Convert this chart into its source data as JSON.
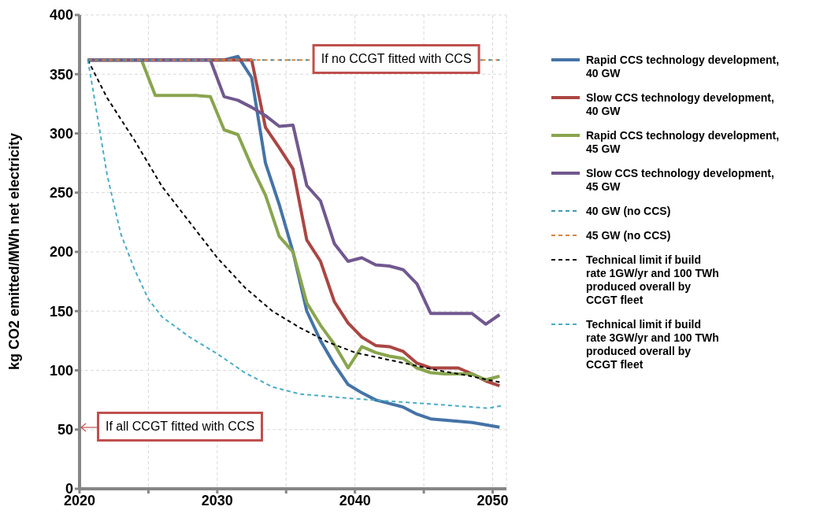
{
  "chart_data": {
    "type": "line",
    "ylabel": "kg CO2 emitted/MWh net electricity",
    "xlim": [
      2020,
      2051
    ],
    "xticks": [
      2020,
      {
        "value": 2025,
        "label": null
      },
      2030,
      {
        "value": 2035,
        "label": null
      },
      2040,
      {
        "value": 2045,
        "label": null
      },
      2050
    ],
    "ylim": [
      0,
      400
    ],
    "yticks": [
      0,
      50,
      100,
      150,
      200,
      250,
      300,
      350,
      400
    ],
    "grid": true,
    "legend": "right",
    "marker": "none",
    "annotations": [
      {
        "text": "If no CCGT fitted with CCS",
        "x": 2043,
        "y": 362
      },
      "If all CCGT fitted with CCS"
    ],
    "series": [
      {
        "name": "Rapid CCS technology development, 40 GW",
        "color": "#4573a7",
        "line_style": "solid",
        "x": [
          2020.6,
          2030.5,
          2031.5,
          2032.5,
          2033.5,
          2034.5,
          2035.5,
          2036.5,
          2037.5,
          2038.5,
          2039.5,
          2040.5,
          2041.5,
          2042.5,
          2043.5,
          2044.5,
          2045.5,
          2046.5,
          2047.5,
          2048.5,
          2049.5,
          2050.5
        ],
        "values": [
          362,
          362,
          365,
          347,
          275,
          240,
          200,
          150,
          125,
          105,
          88,
          81,
          75,
          72,
          69,
          63,
          59,
          58,
          57,
          56,
          54,
          52
        ]
      },
      {
        "name": "Slow CCS technology development, 40 GW",
        "color": "#aa4643",
        "line_style": "solid",
        "x": [
          2020.6,
          2032.5,
          2033.5,
          2034.5,
          2035.5,
          2036.5,
          2037.5,
          2038.5,
          2039.5,
          2040.5,
          2041.5,
          2042.5,
          2043.5,
          2044.5,
          2045.5,
          2046.5,
          2047.5,
          2048.5,
          2049.5,
          2050.5
        ],
        "values": [
          362,
          362,
          305,
          288,
          270,
          210,
          192,
          158,
          140,
          128,
          121,
          120,
          116,
          106,
          102,
          102,
          102,
          97,
          91,
          87
        ]
      },
      {
        "name": "Rapid CCS technology development, 45 GW",
        "color": "#89a54e",
        "line_style": "solid",
        "x": [
          2020.6,
          2024.5,
          2025.5,
          2028.5,
          2029.5,
          2030.5,
          2031.5,
          2032.5,
          2033.5,
          2034.5,
          2035.5,
          2036.5,
          2037.5,
          2038.5,
          2039.5,
          2040.5,
          2041.5,
          2042.5,
          2043.5,
          2044.5,
          2045.5,
          2046.5,
          2047.5,
          2048.5,
          2049.5,
          2050.5
        ],
        "values": [
          362,
          362,
          332,
          332,
          331,
          303,
          299,
          272,
          248,
          213,
          200,
          157,
          138,
          122,
          102,
          120,
          115,
          112,
          110,
          102,
          98,
          97,
          97,
          97,
          92,
          95
        ]
      },
      {
        "name": "Slow CCS technology development, 45 GW",
        "color": "#71588f",
        "line_style": "solid",
        "x": [
          2020.6,
          2029.5,
          2030.5,
          2031.5,
          2032.5,
          2033.5,
          2034.5,
          2035.5,
          2036.5,
          2037.5,
          2038.5,
          2039.5,
          2040.5,
          2041.5,
          2042.5,
          2043.5,
          2044.5,
          2045.5,
          2046.5,
          2047.5,
          2048.5,
          2049.5,
          2050.5
        ],
        "values": [
          362,
          362,
          331,
          328,
          322,
          315,
          306,
          307,
          256,
          243,
          207,
          192,
          195,
          189,
          188,
          185,
          173,
          148,
          148,
          148,
          148,
          139,
          147
        ]
      },
      {
        "name": "40 GW (no CCS)",
        "color": "#4198af",
        "line_style": "dashed",
        "x": [
          2020.6,
          2050.5
        ],
        "values": [
          362,
          362
        ]
      },
      {
        "name": "45 GW (no CCS)",
        "color": "#db843d",
        "line_style": "dashed",
        "x": [
          2020.6,
          2050.5
        ],
        "values": [
          362,
          362
        ]
      },
      {
        "name": "Technical limit if build rate 1GW/yr and 100 TWh produced overall by CCGT fleet",
        "color": "#000000",
        "line_style": "dashed",
        "x": [
          2020.6,
          2022,
          2024,
          2026,
          2028,
          2030,
          2032,
          2034,
          2036,
          2038,
          2040,
          2042,
          2044,
          2046,
          2048,
          2050.5
        ],
        "values": [
          362,
          330,
          294,
          255,
          225,
          195,
          170,
          150,
          136,
          124,
          115,
          110,
          105,
          100,
          96,
          90
        ]
      },
      {
        "name": "Technical limit if build rate 3GW/yr and 100 TWh produced overall by CCGT fleet",
        "color": "#4bacc6",
        "line_style": "dashed",
        "x": [
          2020.6,
          2021,
          2022,
          2023,
          2024,
          2025,
          2026,
          2028,
          2030,
          2032,
          2034,
          2036,
          2040,
          2045,
          2049.7,
          2050.6
        ],
        "values": [
          362,
          335,
          265,
          215,
          185,
          160,
          145,
          128,
          114,
          98,
          86,
          80,
          76,
          72,
          68,
          70
        ]
      }
    ]
  }
}
